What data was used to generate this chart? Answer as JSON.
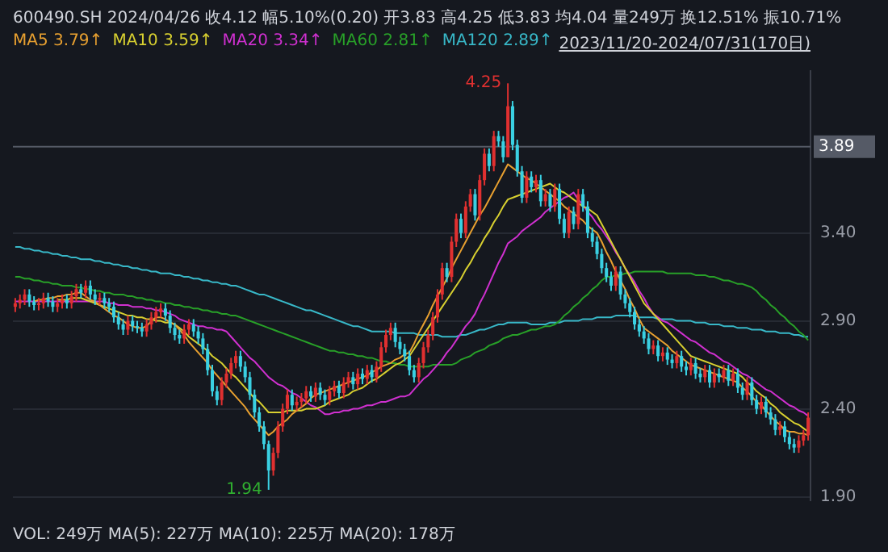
{
  "chart_data": {
    "type": "candlestick",
    "title": "600490.SH 2024/04/26 收4.12 幅5.10%(0.20) 开3.83 高4.25 低3.83 均4.04 量249万 换12.51% 振10.71%",
    "subtitle": "2023/11/20-2024/07/31(170日)",
    "categories": [
      null,
      null,
      null,
      null,
      null,
      null,
      null,
      null,
      null,
      null,
      null,
      null,
      null,
      null,
      null,
      null,
      null,
      null,
      null,
      null,
      null,
      null,
      null,
      null,
      null,
      null,
      null,
      null,
      null,
      null,
      null,
      null,
      null,
      null,
      null,
      null,
      null,
      null,
      null,
      null,
      null,
      null,
      null,
      null,
      null,
      null,
      null,
      null,
      null,
      null,
      null,
      null,
      null,
      null,
      null,
      null,
      null,
      null,
      null,
      null,
      null,
      null,
      null,
      null,
      null,
      null,
      null,
      null,
      null,
      null,
      null,
      null,
      null,
      null,
      null,
      null,
      null,
      null,
      null,
      null,
      null,
      null,
      null,
      null,
      null,
      null,
      null,
      null,
      null,
      null,
      null,
      null,
      null,
      null,
      null,
      null,
      null,
      null,
      null,
      null,
      null,
      null,
      null,
      null,
      null,
      null,
      null,
      null,
      null,
      null,
      null,
      null,
      null,
      null,
      null,
      null,
      null,
      null,
      null,
      null,
      null,
      null,
      null,
      null,
      null,
      null,
      null,
      null,
      null,
      null,
      null,
      null,
      null,
      null,
      null,
      null,
      null,
      null,
      null,
      null,
      null,
      null,
      null,
      null,
      null,
      null,
      null,
      null,
      null,
      null,
      null,
      null,
      null,
      null,
      null,
      null,
      null,
      null,
      null,
      null,
      null,
      null,
      null,
      null,
      null,
      null,
      null,
      null,
      null,
      null
    ],
    "ohlc": [
      [
        2.98,
        3.03,
        2.95,
        3.0
      ],
      [
        3.0,
        3.05,
        2.97,
        3.02
      ],
      [
        3.02,
        3.08,
        2.99,
        3.05
      ],
      [
        3.05,
        3.08,
        2.98,
        3.01
      ],
      [
        3.01,
        3.04,
        2.96,
        2.99
      ],
      [
        2.99,
        3.03,
        2.96,
        3.0
      ],
      [
        3.0,
        3.06,
        2.97,
        3.03
      ],
      [
        3.03,
        3.06,
        2.98,
        3.01
      ],
      [
        3.01,
        3.04,
        2.95,
        2.98
      ],
      [
        2.98,
        3.03,
        2.95,
        3.0
      ],
      [
        3.0,
        3.05,
        2.97,
        3.02
      ],
      [
        3.02,
        3.05,
        2.97,
        3.0
      ],
      [
        3.0,
        3.07,
        2.97,
        3.04
      ],
      [
        3.04,
        3.11,
        3.01,
        3.08
      ],
      [
        3.08,
        3.11,
        3.03,
        3.06
      ],
      [
        3.06,
        3.13,
        3.03,
        3.1
      ],
      [
        3.1,
        3.13,
        3.02,
        3.05
      ],
      [
        3.05,
        3.08,
        2.99,
        3.02
      ],
      [
        3.02,
        3.06,
        2.99,
        3.03
      ],
      [
        3.03,
        3.06,
        2.97,
        3.0
      ],
      [
        3.0,
        3.03,
        2.95,
        2.98
      ],
      [
        2.98,
        3.01,
        2.89,
        2.92
      ],
      [
        2.92,
        2.95,
        2.85,
        2.88
      ],
      [
        2.88,
        2.91,
        2.82,
        2.85
      ],
      [
        2.85,
        2.93,
        2.82,
        2.9
      ],
      [
        2.9,
        2.93,
        2.84,
        2.87
      ],
      [
        2.87,
        2.9,
        2.83,
        2.86
      ],
      [
        2.86,
        2.89,
        2.81,
        2.84
      ],
      [
        2.84,
        2.91,
        2.81,
        2.88
      ],
      [
        2.88,
        2.95,
        2.85,
        2.92
      ],
      [
        2.92,
        2.98,
        2.89,
        2.95
      ],
      [
        2.95,
        3.0,
        2.92,
        2.97
      ],
      [
        2.97,
        3.0,
        2.9,
        2.93
      ],
      [
        2.93,
        2.96,
        2.83,
        2.86
      ],
      [
        2.86,
        2.89,
        2.79,
        2.82
      ],
      [
        2.82,
        2.85,
        2.77,
        2.8
      ],
      [
        2.8,
        2.88,
        2.77,
        2.85
      ],
      [
        2.85,
        2.91,
        2.82,
        2.88
      ],
      [
        2.88,
        2.91,
        2.81,
        2.84
      ],
      [
        2.84,
        2.87,
        2.77,
        2.8
      ],
      [
        2.8,
        2.83,
        2.71,
        2.74
      ],
      [
        2.74,
        2.77,
        2.59,
        2.62
      ],
      [
        2.62,
        2.65,
        2.47,
        2.5
      ],
      [
        2.5,
        2.53,
        2.42,
        2.45
      ],
      [
        2.45,
        2.58,
        2.42,
        2.55
      ],
      [
        2.55,
        2.63,
        2.52,
        2.6
      ],
      [
        2.6,
        2.69,
        2.57,
        2.66
      ],
      [
        2.66,
        2.73,
        2.63,
        2.7
      ],
      [
        2.7,
        2.73,
        2.61,
        2.64
      ],
      [
        2.64,
        2.67,
        2.55,
        2.58
      ],
      [
        2.58,
        2.61,
        2.45,
        2.48
      ],
      [
        2.48,
        2.51,
        2.35,
        2.38
      ],
      [
        2.38,
        2.41,
        2.27,
        2.3
      ],
      [
        2.3,
        2.33,
        2.17,
        2.2
      ],
      [
        2.2,
        2.22,
        1.94,
        2.05
      ],
      [
        2.05,
        2.18,
        2.02,
        2.15
      ],
      [
        2.15,
        2.33,
        2.12,
        2.3
      ],
      [
        2.3,
        2.43,
        2.27,
        2.4
      ],
      [
        2.4,
        2.51,
        2.37,
        2.48
      ],
      [
        2.48,
        2.51,
        2.39,
        2.42
      ],
      [
        2.42,
        2.47,
        2.39,
        2.44
      ],
      [
        2.44,
        2.49,
        2.41,
        2.46
      ],
      [
        2.46,
        2.53,
        2.43,
        2.5
      ],
      [
        2.5,
        2.53,
        2.44,
        2.47
      ],
      [
        2.47,
        2.55,
        2.44,
        2.52
      ],
      [
        2.52,
        2.55,
        2.45,
        2.48
      ],
      [
        2.48,
        2.51,
        2.42,
        2.45
      ],
      [
        2.45,
        2.53,
        2.42,
        2.5
      ],
      [
        2.5,
        2.56,
        2.47,
        2.53
      ],
      [
        2.53,
        2.56,
        2.46,
        2.49
      ],
      [
        2.49,
        2.58,
        2.46,
        2.55
      ],
      [
        2.55,
        2.61,
        2.52,
        2.58
      ],
      [
        2.58,
        2.61,
        2.51,
        2.54
      ],
      [
        2.54,
        2.63,
        2.51,
        2.6
      ],
      [
        2.6,
        2.63,
        2.54,
        2.57
      ],
      [
        2.57,
        2.65,
        2.54,
        2.62
      ],
      [
        2.62,
        2.65,
        2.55,
        2.58
      ],
      [
        2.58,
        2.67,
        2.55,
        2.64
      ],
      [
        2.64,
        2.78,
        2.61,
        2.75
      ],
      [
        2.75,
        2.85,
        2.72,
        2.82
      ],
      [
        2.82,
        2.89,
        2.79,
        2.86
      ],
      [
        2.86,
        2.89,
        2.75,
        2.78
      ],
      [
        2.78,
        2.81,
        2.71,
        2.74
      ],
      [
        2.74,
        2.77,
        2.67,
        2.7
      ],
      [
        2.7,
        2.73,
        2.59,
        2.62
      ],
      [
        2.62,
        2.65,
        2.55,
        2.58
      ],
      [
        2.58,
        2.69,
        2.55,
        2.66
      ],
      [
        2.66,
        2.78,
        2.63,
        2.75
      ],
      [
        2.75,
        2.85,
        2.72,
        2.82
      ],
      [
        2.82,
        2.95,
        2.79,
        2.92
      ],
      [
        2.92,
        3.08,
        2.89,
        3.05
      ],
      [
        3.05,
        3.23,
        3.02,
        3.2
      ],
      [
        3.2,
        3.23,
        3.12,
        3.15
      ],
      [
        3.15,
        3.38,
        3.12,
        3.35
      ],
      [
        3.35,
        3.51,
        3.32,
        3.48
      ],
      [
        3.48,
        3.51,
        3.37,
        3.4
      ],
      [
        3.4,
        3.58,
        3.37,
        3.55
      ],
      [
        3.55,
        3.65,
        3.52,
        3.62
      ],
      [
        3.62,
        3.65,
        3.47,
        3.5
      ],
      [
        3.5,
        3.73,
        3.47,
        3.7
      ],
      [
        3.7,
        3.88,
        3.67,
        3.85
      ],
      [
        3.85,
        3.88,
        3.75,
        3.78
      ],
      [
        3.78,
        3.98,
        3.75,
        3.95
      ],
      [
        3.95,
        3.98,
        3.89,
        3.92
      ],
      [
        3.92,
        3.95,
        3.8,
        3.83
      ],
      [
        3.83,
        4.25,
        3.83,
        4.12
      ],
      [
        4.12,
        4.15,
        3.87,
        3.9
      ],
      [
        3.9,
        3.93,
        3.72,
        3.75
      ],
      [
        3.75,
        3.78,
        3.57,
        3.6
      ],
      [
        3.6,
        3.75,
        3.57,
        3.72
      ],
      [
        3.72,
        3.75,
        3.63,
        3.66
      ],
      [
        3.66,
        3.73,
        3.63,
        3.7
      ],
      [
        3.7,
        3.73,
        3.55,
        3.58
      ],
      [
        3.58,
        3.65,
        3.55,
        3.62
      ],
      [
        3.62,
        3.65,
        3.52,
        3.55
      ],
      [
        3.55,
        3.68,
        3.52,
        3.65
      ],
      [
        3.65,
        3.68,
        3.45,
        3.48
      ],
      [
        3.48,
        3.51,
        3.37,
        3.4
      ],
      [
        3.4,
        3.55,
        3.37,
        3.52
      ],
      [
        3.52,
        3.55,
        3.42,
        3.45
      ],
      [
        3.45,
        3.65,
        3.42,
        3.62
      ],
      [
        3.62,
        3.65,
        3.52,
        3.55
      ],
      [
        3.55,
        3.58,
        3.37,
        3.4
      ],
      [
        3.4,
        3.43,
        3.32,
        3.35
      ],
      [
        3.35,
        3.38,
        3.25,
        3.28
      ],
      [
        3.28,
        3.31,
        3.17,
        3.2
      ],
      [
        3.2,
        3.23,
        3.12,
        3.15
      ],
      [
        3.15,
        3.18,
        3.07,
        3.1
      ],
      [
        3.1,
        3.21,
        3.07,
        3.18
      ],
      [
        3.18,
        3.21,
        3.02,
        3.05
      ],
      [
        3.05,
        3.08,
        2.97,
        3.0
      ],
      [
        3.0,
        3.03,
        2.92,
        2.95
      ],
      [
        2.95,
        2.98,
        2.85,
        2.88
      ],
      [
        2.88,
        2.91,
        2.81,
        2.84
      ],
      [
        2.84,
        2.87,
        2.77,
        2.8
      ],
      [
        2.8,
        2.83,
        2.71,
        2.74
      ],
      [
        2.74,
        2.79,
        2.71,
        2.76
      ],
      [
        2.76,
        2.79,
        2.67,
        2.7
      ],
      [
        2.7,
        2.75,
        2.67,
        2.72
      ],
      [
        2.72,
        2.75,
        2.65,
        2.68
      ],
      [
        2.68,
        2.71,
        2.63,
        2.66
      ],
      [
        2.66,
        2.73,
        2.63,
        2.7
      ],
      [
        2.7,
        2.73,
        2.61,
        2.64
      ],
      [
        2.64,
        2.67,
        2.59,
        2.62
      ],
      [
        2.62,
        2.69,
        2.59,
        2.66
      ],
      [
        2.66,
        2.69,
        2.57,
        2.6
      ],
      [
        2.6,
        2.63,
        2.55,
        2.58
      ],
      [
        2.58,
        2.65,
        2.55,
        2.62
      ],
      [
        2.62,
        2.65,
        2.52,
        2.55
      ],
      [
        2.55,
        2.63,
        2.52,
        2.6
      ],
      [
        2.6,
        2.63,
        2.55,
        2.58
      ],
      [
        2.58,
        2.65,
        2.55,
        2.62
      ],
      [
        2.62,
        2.65,
        2.53,
        2.56
      ],
      [
        2.56,
        2.63,
        2.53,
        2.6
      ],
      [
        2.6,
        2.63,
        2.49,
        2.52
      ],
      [
        2.52,
        2.55,
        2.45,
        2.48
      ],
      [
        2.48,
        2.58,
        2.45,
        2.55
      ],
      [
        2.55,
        2.58,
        2.42,
        2.45
      ],
      [
        2.45,
        2.48,
        2.37,
        2.4
      ],
      [
        2.4,
        2.47,
        2.37,
        2.44
      ],
      [
        2.44,
        2.47,
        2.35,
        2.38
      ],
      [
        2.38,
        2.41,
        2.31,
        2.34
      ],
      [
        2.34,
        2.37,
        2.25,
        2.28
      ],
      [
        2.28,
        2.33,
        2.25,
        2.3
      ],
      [
        2.3,
        2.33,
        2.21,
        2.24
      ],
      [
        2.24,
        2.27,
        2.17,
        2.2
      ],
      [
        2.2,
        2.23,
        2.15,
        2.18
      ],
      [
        2.18,
        2.25,
        2.15,
        2.22
      ],
      [
        2.22,
        2.28,
        2.19,
        2.25
      ],
      [
        2.25,
        2.38,
        2.22,
        2.35
      ]
    ],
    "series": [
      {
        "type": "line",
        "name": "MA5",
        "color": "#e8a030",
        "values": [
          null,
          null,
          null,
          null,
          3.01,
          3.02,
          3.02,
          3.03,
          3.03,
          3.04,
          3.04,
          3.05,
          3.05,
          3.06,
          3.06,
          3.04,
          3.02,
          3.01,
          2.99,
          2.97,
          2.95,
          2.93,
          2.92,
          2.9,
          2.88,
          2.87,
          2.86,
          2.86,
          2.87,
          2.9,
          2.92,
          2.92,
          2.91,
          2.89,
          2.88,
          2.85,
          2.82,
          2.78,
          2.75,
          2.72,
          2.69,
          2.66,
          2.62,
          2.59,
          2.56,
          2.53,
          2.5,
          2.47,
          2.44,
          2.41,
          2.37,
          2.34,
          2.31,
          2.28,
          2.25,
          2.27,
          2.3,
          2.32,
          2.34,
          2.37,
          2.39,
          2.41,
          2.43,
          2.46,
          2.48,
          2.49,
          2.5,
          2.51,
          2.52,
          2.53,
          2.54,
          2.55,
          2.56,
          2.57,
          2.58,
          2.59,
          2.61,
          2.62,
          2.64,
          2.65,
          2.66,
          2.68,
          2.69,
          2.71,
          2.72,
          2.77,
          2.83,
          2.88,
          2.93,
          2.99,
          3.04,
          3.09,
          3.14,
          3.2,
          3.25,
          3.3,
          3.35,
          3.4,
          3.45,
          3.5,
          3.54,
          3.59,
          3.64,
          3.69,
          3.74,
          3.79,
          3.77,
          3.75,
          3.73,
          3.71,
          3.7,
          3.68,
          3.66,
          3.64,
          3.62,
          3.6,
          3.58,
          3.55,
          3.53,
          3.51,
          3.49,
          3.47,
          3.44,
          3.42,
          3.4,
          3.35,
          3.29,
          3.24,
          3.18,
          3.13,
          3.08,
          3.02,
          2.97,
          2.91,
          2.86,
          2.84,
          2.82,
          2.8,
          2.78,
          2.76,
          2.73,
          2.71,
          2.69,
          2.67,
          2.65,
          2.64,
          2.63,
          2.62,
          2.61,
          2.6,
          2.59,
          2.58,
          2.57,
          2.56,
          2.55,
          2.52,
          2.5,
          2.47,
          2.44,
          2.42,
          2.39,
          2.36,
          2.33,
          2.31,
          2.28,
          2.27,
          2.27,
          2.26,
          2.26,
          2.25
        ]
      },
      {
        "type": "line",
        "name": "MA10",
        "color": "#d8d030",
        "values": [
          null,
          null,
          null,
          null,
          null,
          null,
          null,
          null,
          null,
          3.02,
          3.02,
          3.02,
          3.03,
          3.03,
          3.03,
          3.02,
          3.01,
          3.0,
          2.99,
          2.98,
          2.97,
          2.96,
          2.95,
          2.94,
          2.93,
          2.93,
          2.92,
          2.92,
          2.91,
          2.91,
          2.9,
          2.9,
          2.89,
          2.89,
          2.88,
          2.86,
          2.84,
          2.81,
          2.79,
          2.77,
          2.75,
          2.73,
          2.7,
          2.68,
          2.66,
          2.63,
          2.6,
          2.58,
          2.55,
          2.52,
          2.49,
          2.46,
          2.44,
          2.41,
          2.38,
          2.38,
          2.38,
          2.38,
          2.39,
          2.39,
          2.39,
          2.39,
          2.4,
          2.4,
          2.4,
          2.41,
          2.42,
          2.44,
          2.45,
          2.46,
          2.47,
          2.48,
          2.5,
          2.51,
          2.52,
          2.54,
          2.56,
          2.57,
          2.59,
          2.61,
          2.63,
          2.65,
          2.66,
          2.68,
          2.7,
          2.74,
          2.78,
          2.82,
          2.86,
          2.9,
          2.94,
          2.98,
          3.02,
          3.06,
          3.1,
          3.14,
          3.19,
          3.23,
          3.28,
          3.32,
          3.37,
          3.41,
          3.46,
          3.5,
          3.55,
          3.59,
          3.6,
          3.61,
          3.62,
          3.63,
          3.64,
          3.65,
          3.66,
          3.67,
          3.68,
          3.66,
          3.64,
          3.63,
          3.61,
          3.59,
          3.57,
          3.55,
          3.54,
          3.52,
          3.5,
          3.45,
          3.4,
          3.35,
          3.3,
          3.25,
          3.2,
          3.15,
          3.1,
          3.05,
          3.0,
          2.97,
          2.94,
          2.91,
          2.88,
          2.85,
          2.82,
          2.79,
          2.76,
          2.73,
          2.7,
          2.69,
          2.68,
          2.67,
          2.66,
          2.65,
          2.64,
          2.63,
          2.62,
          2.61,
          2.6,
          2.58,
          2.55,
          2.53,
          2.5,
          2.48,
          2.46,
          2.43,
          2.41,
          2.38,
          2.36,
          2.34,
          2.32,
          2.31,
          2.29,
          2.27
        ]
      },
      {
        "type": "line",
        "name": "MA20",
        "color": "#d030d0",
        "values": [
          3.01,
          3.01,
          3.01,
          3.01,
          3.01,
          3.01,
          3.01,
          3.01,
          3.01,
          3.01,
          3.01,
          3.01,
          3.01,
          3.01,
          3.01,
          3.01,
          3.01,
          3.01,
          3.01,
          3.01,
          3.0,
          3.0,
          2.99,
          2.99,
          2.99,
          2.98,
          2.98,
          2.98,
          2.97,
          2.97,
          2.96,
          2.96,
          2.95,
          2.94,
          2.93,
          2.91,
          2.9,
          2.89,
          2.88,
          2.87,
          2.87,
          2.86,
          2.86,
          2.85,
          2.85,
          2.84,
          2.81,
          2.78,
          2.75,
          2.72,
          2.69,
          2.67,
          2.64,
          2.61,
          2.58,
          2.56,
          2.54,
          2.53,
          2.51,
          2.49,
          2.48,
          2.46,
          2.44,
          2.42,
          2.41,
          2.39,
          2.37,
          2.37,
          2.38,
          2.38,
          2.39,
          2.39,
          2.4,
          2.4,
          2.41,
          2.42,
          2.42,
          2.43,
          2.44,
          2.44,
          2.45,
          2.46,
          2.47,
          2.47,
          2.48,
          2.51,
          2.54,
          2.57,
          2.59,
          2.62,
          2.65,
          2.68,
          2.72,
          2.75,
          2.79,
          2.83,
          2.87,
          2.9,
          2.94,
          3.0,
          3.05,
          3.11,
          3.17,
          3.23,
          3.28,
          3.34,
          3.36,
          3.38,
          3.41,
          3.43,
          3.45,
          3.47,
          3.49,
          3.52,
          3.54,
          3.56,
          3.58,
          3.6,
          3.61,
          3.63,
          3.59,
          3.56,
          3.52,
          3.49,
          3.45,
          3.42,
          3.38,
          3.34,
          3.29,
          3.25,
          3.2,
          3.16,
          3.12,
          3.07,
          3.03,
          2.98,
          2.94,
          2.92,
          2.9,
          2.89,
          2.87,
          2.85,
          2.83,
          2.81,
          2.79,
          2.78,
          2.76,
          2.74,
          2.72,
          2.71,
          2.69,
          2.67,
          2.66,
          2.64,
          2.62,
          2.6,
          2.59,
          2.57,
          2.55,
          2.53,
          2.51,
          2.5,
          2.48,
          2.46,
          2.44,
          2.42,
          2.41,
          2.39,
          2.38,
          2.36
        ]
      },
      {
        "type": "line",
        "name": "MA60",
        "color": "#28a028",
        "values": [
          3.15,
          3.15,
          3.14,
          3.14,
          3.13,
          3.13,
          3.12,
          3.12,
          3.11,
          3.11,
          3.1,
          3.1,
          3.1,
          3.09,
          3.09,
          3.08,
          3.08,
          3.07,
          3.07,
          3.06,
          3.06,
          3.05,
          3.05,
          3.05,
          3.04,
          3.04,
          3.03,
          3.03,
          3.02,
          3.02,
          3.01,
          3.01,
          3.0,
          3.0,
          2.99,
          2.99,
          2.98,
          2.98,
          2.97,
          2.97,
          2.96,
          2.96,
          2.95,
          2.95,
          2.94,
          2.94,
          2.93,
          2.93,
          2.92,
          2.91,
          2.9,
          2.89,
          2.88,
          2.87,
          2.86,
          2.85,
          2.84,
          2.83,
          2.82,
          2.81,
          2.8,
          2.79,
          2.78,
          2.77,
          2.76,
          2.75,
          2.74,
          2.73,
          2.73,
          2.72,
          2.72,
          2.71,
          2.71,
          2.7,
          2.7,
          2.69,
          2.69,
          2.68,
          2.67,
          2.67,
          2.66,
          2.66,
          2.65,
          2.65,
          2.64,
          2.64,
          2.64,
          2.64,
          2.64,
          2.65,
          2.65,
          2.65,
          2.65,
          2.65,
          2.66,
          2.68,
          2.69,
          2.7,
          2.72,
          2.73,
          2.74,
          2.76,
          2.77,
          2.78,
          2.8,
          2.81,
          2.82,
          2.82,
          2.83,
          2.84,
          2.85,
          2.85,
          2.86,
          2.87,
          2.87,
          2.88,
          2.9,
          2.93,
          2.95,
          2.98,
          3.0,
          3.03,
          3.05,
          3.08,
          3.1,
          3.13,
          3.15,
          3.15,
          3.16,
          3.16,
          3.17,
          3.17,
          3.18,
          3.18,
          3.18,
          3.18,
          3.18,
          3.18,
          3.18,
          3.17,
          3.17,
          3.17,
          3.17,
          3.17,
          3.17,
          3.16,
          3.16,
          3.16,
          3.15,
          3.15,
          3.14,
          3.13,
          3.13,
          3.12,
          3.11,
          3.11,
          3.1,
          3.09,
          3.07,
          3.04,
          3.02,
          2.99,
          2.97,
          2.94,
          2.92,
          2.89,
          2.87,
          2.84,
          2.82,
          2.79
        ]
      },
      {
        "type": "line",
        "name": "MA120",
        "color": "#38b8c8",
        "values": [
          3.32,
          3.32,
          3.31,
          3.31,
          3.3,
          3.3,
          3.29,
          3.29,
          3.28,
          3.28,
          3.27,
          3.27,
          3.26,
          3.26,
          3.25,
          3.25,
          3.25,
          3.24,
          3.24,
          3.23,
          3.23,
          3.22,
          3.22,
          3.21,
          3.21,
          3.2,
          3.2,
          3.19,
          3.19,
          3.18,
          3.18,
          3.17,
          3.17,
          3.17,
          3.16,
          3.16,
          3.15,
          3.15,
          3.14,
          3.14,
          3.13,
          3.13,
          3.12,
          3.12,
          3.11,
          3.11,
          3.1,
          3.1,
          3.09,
          3.08,
          3.07,
          3.06,
          3.05,
          3.05,
          3.04,
          3.03,
          3.02,
          3.01,
          3.0,
          2.99,
          2.98,
          2.97,
          2.96,
          2.96,
          2.95,
          2.94,
          2.93,
          2.92,
          2.91,
          2.9,
          2.89,
          2.88,
          2.87,
          2.87,
          2.86,
          2.85,
          2.84,
          2.84,
          2.84,
          2.84,
          2.84,
          2.83,
          2.83,
          2.83,
          2.83,
          2.83,
          2.82,
          2.82,
          2.82,
          2.82,
          2.82,
          2.81,
          2.81,
          2.81,
          2.81,
          2.82,
          2.82,
          2.83,
          2.84,
          2.85,
          2.85,
          2.86,
          2.87,
          2.88,
          2.88,
          2.89,
          2.89,
          2.89,
          2.89,
          2.89,
          2.88,
          2.88,
          2.88,
          2.88,
          2.89,
          2.89,
          2.89,
          2.9,
          2.9,
          2.9,
          2.9,
          2.91,
          2.91,
          2.91,
          2.92,
          2.92,
          2.92,
          2.92,
          2.93,
          2.93,
          2.93,
          2.93,
          2.93,
          2.92,
          2.92,
          2.92,
          2.92,
          2.91,
          2.91,
          2.91,
          2.91,
          2.9,
          2.9,
          2.9,
          2.9,
          2.89,
          2.89,
          2.89,
          2.88,
          2.88,
          2.88,
          2.87,
          2.87,
          2.87,
          2.86,
          2.86,
          2.86,
          2.85,
          2.85,
          2.85,
          2.84,
          2.84,
          2.84,
          2.83,
          2.83,
          2.83,
          2.82,
          2.82,
          2.81,
          2.81
        ]
      }
    ],
    "ylim": [
      1.88,
      4.32
    ],
    "yticks": [
      {
        "value": 1.9,
        "label": "1.90"
      },
      {
        "value": 2.4,
        "label": "2.40"
      },
      {
        "value": 2.9,
        "label": "2.90"
      },
      {
        "value": 3.4,
        "label": "3.40"
      }
    ],
    "tick_labels": "y",
    "grid": "y",
    "ref_lines": [
      {
        "axis": "y",
        "value": 3.89,
        "label": "3.89",
        "color": "#555a66"
      }
    ],
    "annotations": [
      "4.25",
      "1.94",
      "3.79↑",
      "3.59↑",
      "3.34↑",
      "2.81↑",
      "2.89↑",
      "VOL: 249万 MA(5): 227万 MA(10): 225万 MA(20): 178万"
    ]
  }
}
